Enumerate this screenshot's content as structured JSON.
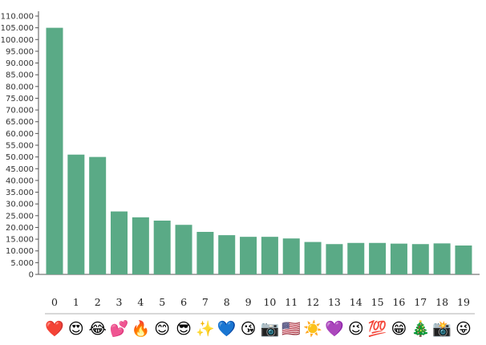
{
  "chart_data": {
    "type": "bar",
    "categories": [
      "0",
      "1",
      "2",
      "3",
      "4",
      "5",
      "6",
      "7",
      "8",
      "9",
      "10",
      "11",
      "12",
      "13",
      "14",
      "15",
      "16",
      "17",
      "18",
      "19"
    ],
    "emoji": [
      "❤️",
      "😍",
      "😂",
      "💕",
      "🔥",
      "😊",
      "😎",
      "✨",
      "💙",
      "😘",
      "📷",
      "🇺🇸",
      "☀️",
      "💜",
      "😉",
      "💯",
      "😁",
      "🎄",
      "📸",
      "😜"
    ],
    "values": [
      105000,
      51000,
      50000,
      26800,
      24300,
      22900,
      21100,
      18100,
      16700,
      16000,
      16000,
      15300,
      13800,
      12900,
      13400,
      13400,
      13100,
      12900,
      13200,
      12300
    ],
    "yticks": [
      "0",
      "5.000",
      "10.000",
      "15.000",
      "20.000",
      "25.000",
      "30.000",
      "35.000",
      "40.000",
      "45.000",
      "50.000",
      "55.000",
      "60.000",
      "65.000",
      "70.000",
      "75.000",
      "80.000",
      "85.000",
      "90.000",
      "95.000",
      "100.000",
      "105.000",
      "110.000"
    ],
    "ylim": [
      0,
      110000
    ],
    "bar_color": "#5aaa86",
    "title": "",
    "xlabel": "",
    "ylabel": "",
    "grid": false,
    "legend": "none"
  }
}
